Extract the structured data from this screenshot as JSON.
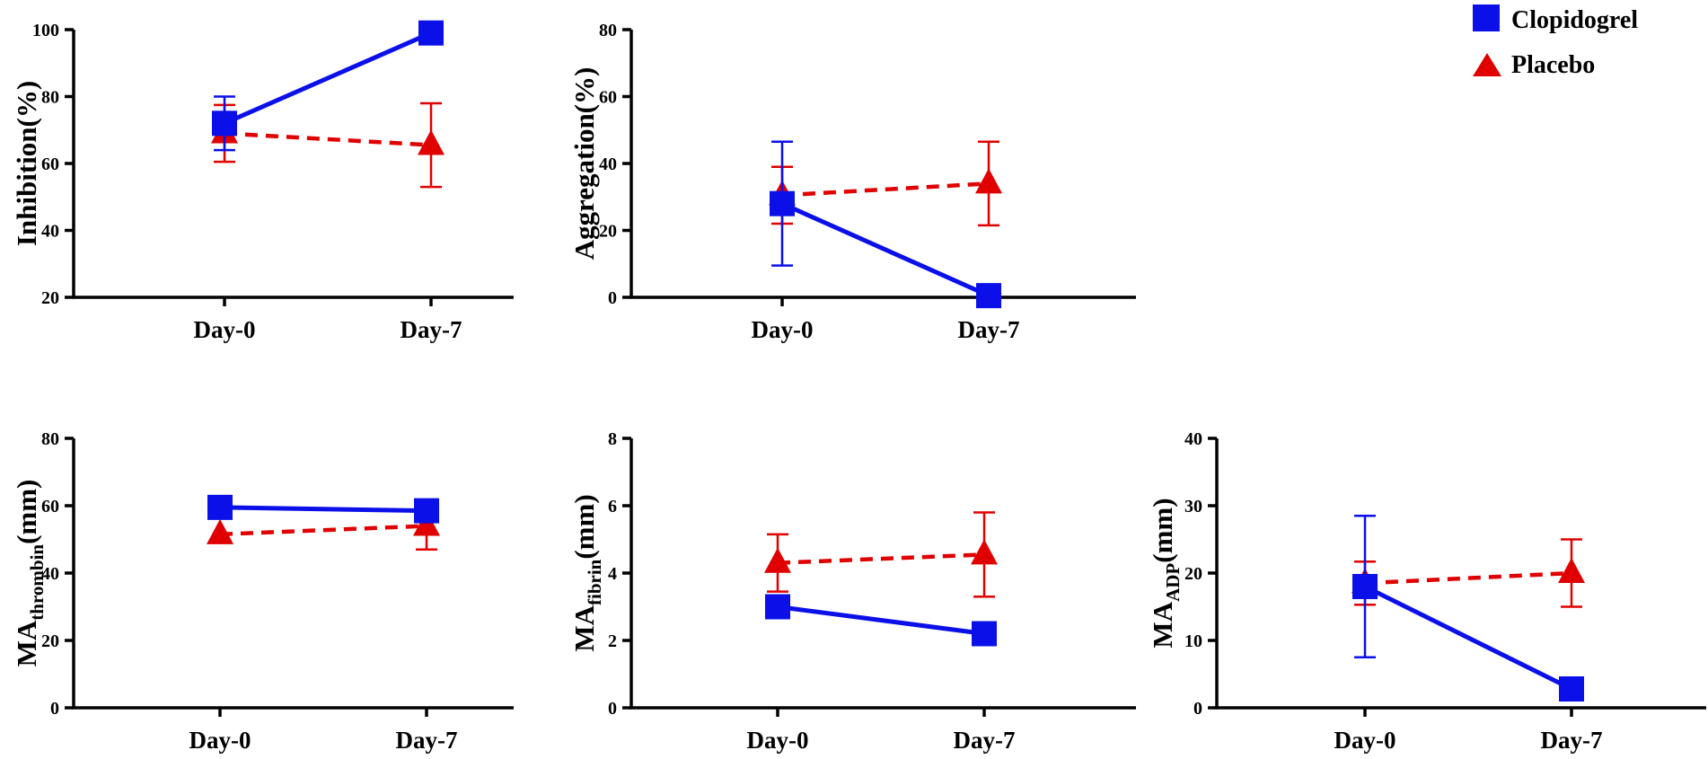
{
  "colors": {
    "clopidogrel": "#0b10e8",
    "placeholder_removed": null,
    "placebo": "#e00000",
    "axis": "#000000"
  },
  "legend": {
    "items": [
      {
        "label": "Clopidogrel",
        "marker": "square"
      },
      {
        "label": "Placebo",
        "marker": "triangle"
      }
    ]
  },
  "chart_data": [
    {
      "type": "line",
      "title": "",
      "ylabel": {
        "main": "Inhibition(%)",
        "sub": ""
      },
      "ylim": [
        20,
        100
      ],
      "yticks": [
        20,
        40,
        60,
        80,
        100
      ],
      "categories": [
        "Day-0",
        "Day-7"
      ],
      "series": [
        {
          "name": "Clopidogrel",
          "values": [
            72,
            99
          ],
          "errors": [
            8,
            0
          ]
        },
        {
          "name": "Placebo",
          "values": [
            69,
            65.5
          ],
          "errors": [
            8.5,
            12.5
          ]
        }
      ]
    },
    {
      "type": "line",
      "title": "",
      "ylabel": {
        "main": "Aggregation(%)",
        "sub": ""
      },
      "ylim": [
        0,
        80
      ],
      "yticks": [
        0,
        20,
        40,
        60,
        80
      ],
      "categories": [
        "Day-0",
        "Day-7"
      ],
      "series": [
        {
          "name": "Clopidogrel",
          "values": [
            28,
            0.5
          ],
          "errors": [
            18.5,
            0
          ]
        },
        {
          "name": "Placebo",
          "values": [
            30.5,
            34
          ],
          "errors": [
            8.5,
            12.5
          ]
        }
      ]
    },
    {
      "type": "line",
      "title": "",
      "ylabel": {
        "main": "MA",
        "sub": "thrombin",
        "unit": "(mm)"
      },
      "ylim": [
        0,
        80
      ],
      "yticks": [
        0,
        20,
        40,
        60,
        80
      ],
      "categories": [
        "Day-0",
        "Day-7"
      ],
      "series": [
        {
          "name": "Clopidogrel",
          "values": [
            59.5,
            58.5
          ],
          "errors": [
            0,
            0
          ]
        },
        {
          "name": "Placebo",
          "values": [
            51.5,
            54
          ],
          "errors": [
            0,
            7
          ]
        }
      ]
    },
    {
      "type": "line",
      "title": "",
      "ylabel": {
        "main": "MA",
        "sub": "fibrin",
        "unit": "(mm)"
      },
      "ylim": [
        0,
        8
      ],
      "yticks": [
        0,
        2,
        4,
        6,
        8
      ],
      "categories": [
        "Day-0",
        "Day-7"
      ],
      "series": [
        {
          "name": "Clopidogrel",
          "values": [
            3,
            2.2
          ],
          "errors": [
            0,
            0
          ]
        },
        {
          "name": "Placebo",
          "values": [
            4.3,
            4.55
          ],
          "errors": [
            0.85,
            1.25
          ]
        }
      ]
    },
    {
      "type": "line",
      "title": "",
      "ylabel": {
        "main": "MA",
        "sub": "ADP",
        "unit": "(mm)"
      },
      "ylim": [
        0,
        40
      ],
      "yticks": [
        0,
        10,
        20,
        30,
        40
      ],
      "categories": [
        "Day-0",
        "Day-7"
      ],
      "series": [
        {
          "name": "Clopidogrel",
          "values": [
            18,
            2.8
          ],
          "errors": [
            10.5,
            0
          ]
        },
        {
          "name": "Placebo",
          "values": [
            18.5,
            20
          ],
          "errors": [
            3.2,
            5
          ]
        }
      ]
    }
  ]
}
